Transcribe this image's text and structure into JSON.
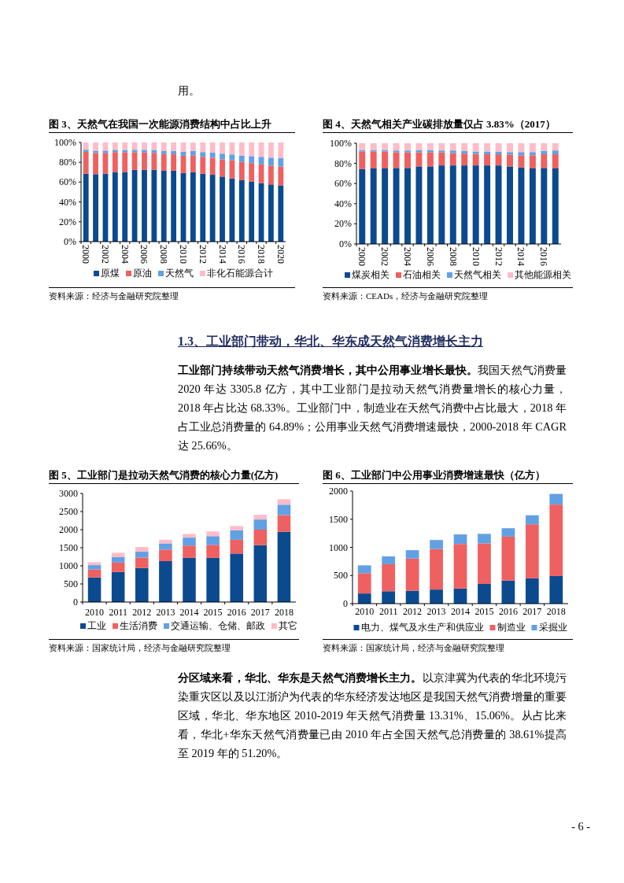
{
  "chart_data": [
    {
      "type": "other",
      "annotations": [
        "用。"
      ]
    },
    {
      "type": "bar",
      "stacked": true,
      "title": "图 3、天然气在我国一次能源消费结构中占比上升",
      "categories": [
        "2000",
        null,
        "2002",
        null,
        "2004",
        null,
        "2006",
        null,
        "2008",
        null,
        "2010",
        null,
        "2012",
        null,
        "2014",
        null,
        "2016",
        null,
        "2018",
        null,
        "2020"
      ],
      "series": [
        {
          "name": "原煤",
          "color": "#0b4a8f",
          "values": [
            68.5,
            68.0,
            68.5,
            70.2,
            70.2,
            72.4,
            72.4,
            72.5,
            71.5,
            71.6,
            69.2,
            70.2,
            68.5,
            67.4,
            65.6,
            63.7,
            62.0,
            60.4,
            59.0,
            57.7,
            56.8
          ]
        },
        {
          "name": "原油",
          "color": "#ef6060",
          "values": [
            22.0,
            21.2,
            21.0,
            20.1,
            19.9,
            17.8,
            17.5,
            17.0,
            16.7,
            16.4,
            17.4,
            16.8,
            17.0,
            17.1,
            17.4,
            18.3,
            18.3,
            18.8,
            18.9,
            19.0,
            18.9
          ]
        },
        {
          "name": "天然气",
          "color": "#62a0e4",
          "values": [
            2.2,
            2.4,
            2.3,
            2.3,
            2.3,
            2.4,
            2.7,
            3.0,
            3.4,
            3.5,
            4.0,
            4.6,
            4.8,
            5.3,
            5.7,
            5.9,
            6.4,
            7.0,
            7.6,
            8.0,
            8.4
          ]
        },
        {
          "name": "非化石能源合计",
          "color": "#ffbcc8",
          "values": [
            7.3,
            8.4,
            8.2,
            7.4,
            7.6,
            7.4,
            7.4,
            7.5,
            8.4,
            8.5,
            9.4,
            8.4,
            9.7,
            10.2,
            11.3,
            12.1,
            13.3,
            13.8,
            14.5,
            15.3,
            15.9
          ]
        }
      ],
      "ylim": [
        0,
        100
      ],
      "yticks": [
        {
          "value": 0,
          "label": "0%"
        },
        {
          "value": 20,
          "label": "20%"
        },
        {
          "value": 40,
          "label": "40%"
        },
        {
          "value": 60,
          "label": "60%"
        },
        {
          "value": 80,
          "label": "80%"
        },
        {
          "value": 100,
          "label": "100%"
        }
      ],
      "legend": "bottom",
      "annotations": [
        "资料来源：经济与金融研究院整理"
      ]
    },
    {
      "type": "bar",
      "stacked": true,
      "title": "图 4、天然气相关产业碳排放量仅占 3.83%（2017）",
      "categories": [
        "2000",
        null,
        "2002",
        null,
        "2004",
        null,
        "2006",
        null,
        "2008",
        null,
        "2010",
        null,
        "2012",
        null,
        "2014",
        null,
        "2016",
        null
      ],
      "series": [
        {
          "name": "煤炭相关",
          "color": "#0b4a8f",
          "values": [
            74.5,
            75,
            75,
            75.5,
            75.5,
            77,
            77,
            78,
            78,
            78,
            78,
            78,
            78,
            77,
            76,
            75,
            75.5,
            75
          ]
        },
        {
          "name": "石油相关",
          "color": "#ef6060",
          "values": [
            17.3,
            16.8,
            16.8,
            15.5,
            15.5,
            14,
            14,
            13,
            12.2,
            11.7,
            11.4,
            11,
            11,
            11.7,
            12,
            13,
            13.5,
            14
          ]
        },
        {
          "name": "天然气相关",
          "color": "#62a0e4",
          "values": [
            1.5,
            1.5,
            1.5,
            1.8,
            1.8,
            2.3,
            2.3,
            1.8,
            2.6,
            2.6,
            2.4,
            2.8,
            2.8,
            2.5,
            3.2,
            3.2,
            3.3,
            3.8
          ]
        },
        {
          "name": "其他能源相关",
          "color": "#ffbcc8",
          "values": [
            6.7,
            6.7,
            6.7,
            7.2,
            7.2,
            6.7,
            6.7,
            7.2,
            7.2,
            7.7,
            8.2,
            8.2,
            8.2,
            8.8,
            8.8,
            8.8,
            7.7,
            7.2
          ]
        }
      ],
      "ylim": [
        0,
        100
      ],
      "yticks": [
        {
          "value": 0,
          "label": "0%"
        },
        {
          "value": 20,
          "label": "20%"
        },
        {
          "value": 40,
          "label": "40%"
        },
        {
          "value": 60,
          "label": "60%"
        },
        {
          "value": 80,
          "label": "80%"
        },
        {
          "value": 100,
          "label": "100%"
        }
      ],
      "legend": "bottom",
      "annotations": [
        "资料来源：CEADs，经济与金融研究院整理"
      ]
    },
    {
      "type": "other",
      "title": "1.3、工业部门带动，华北、华东成天然气消费增长主力",
      "subtitle": "工业部门持续带动天然气消费增长，其中公用事业增长最快。",
      "annotations": [
        "我国天然气消费量 2020 年达 3305.8 亿方，其中工业部门是拉动天然气消费量增长的核心力量，2018 年占比达 68.33%。工业部门中，制造业在天然气消费中占比最大，2018 年占工业总消费量的 64.89%；公用事业天然气消费增速最快，2000-2018 年 CAGR 达 25.66%。"
      ]
    },
    {
      "type": "bar",
      "stacked": true,
      "title": "图 5、工业部门是拉动天然气消费的核心力量(亿方)",
      "categories": [
        "2010",
        "2011",
        "2012",
        "2013",
        "2014",
        "2015",
        "2016",
        "2017",
        "2018"
      ],
      "series": [
        {
          "name": "工业",
          "color": "#0b4a8f",
          "values": [
            680,
            830,
            940,
            1130,
            1220,
            1220,
            1340,
            1570,
            1940
          ]
        },
        {
          "name": "生活消费",
          "color": "#ef6060",
          "values": [
            220,
            260,
            290,
            320,
            340,
            360,
            380,
            430,
            460
          ]
        },
        {
          "name": "交通运输、仓储、邮政",
          "color": "#62a0e4",
          "values": [
            120,
            150,
            160,
            170,
            220,
            240,
            260,
            280,
            290
          ]
        },
        {
          "name": "其它",
          "color": "#ffbcc8",
          "values": [
            80,
            120,
            130,
            100,
            100,
            130,
            120,
            130,
            150
          ]
        }
      ],
      "ylim": [
        0,
        3000
      ],
      "yticks": [
        0,
        500,
        1000,
        1500,
        2000,
        2500,
        3000
      ],
      "legend": "bottom",
      "annotations": [
        "资料来源：国家统计局，经济与金融研究院整理"
      ]
    },
    {
      "type": "bar",
      "stacked": true,
      "title": "图 6、工业部门中公用事业消费增速最快（亿方）",
      "categories": [
        "2010",
        "2011",
        "2012",
        "2013",
        "2014",
        "2015",
        "2016",
        "2017",
        "2018"
      ],
      "series": [
        {
          "name": "电力、煤气及水生产和供应业",
          "color": "#0b4a8f",
          "values": [
            180,
            220,
            230,
            250,
            270,
            350,
            410,
            450,
            490
          ]
        },
        {
          "name": "制造业",
          "color": "#ef6060",
          "values": [
            360,
            480,
            570,
            720,
            790,
            720,
            780,
            960,
            1270
          ]
        },
        {
          "name": "采掘业",
          "color": "#62a0e4",
          "values": [
            140,
            140,
            150,
            160,
            170,
            170,
            150,
            160,
            190
          ]
        }
      ],
      "ylim": [
        0,
        2000
      ],
      "yticks": [
        0,
        500,
        1000,
        1500,
        2000
      ],
      "legend": "bottom",
      "annotations": [
        "资料来源：国家统计局，经济与金融研究院整理"
      ]
    },
    {
      "type": "other",
      "subtitle": "分区域来看，华北、华东是天然气消费增长主力。",
      "annotations": [
        "以京津冀为代表的华北环境污染重灾区以及以江浙沪为代表的华东经济发达地区是我国天然气消费增量的重要区域，华北、华东地区 2010-2019 年天然气消费量 13.31%、15.06%。从占比来看，华北+华东天然气消费量已由 2010 年占全国天然气总消费量的 38.61%提高至 2019 年的 51.20%。"
      ]
    },
    {
      "type": "other",
      "annotations": [
        "- 6 -"
      ]
    }
  ]
}
